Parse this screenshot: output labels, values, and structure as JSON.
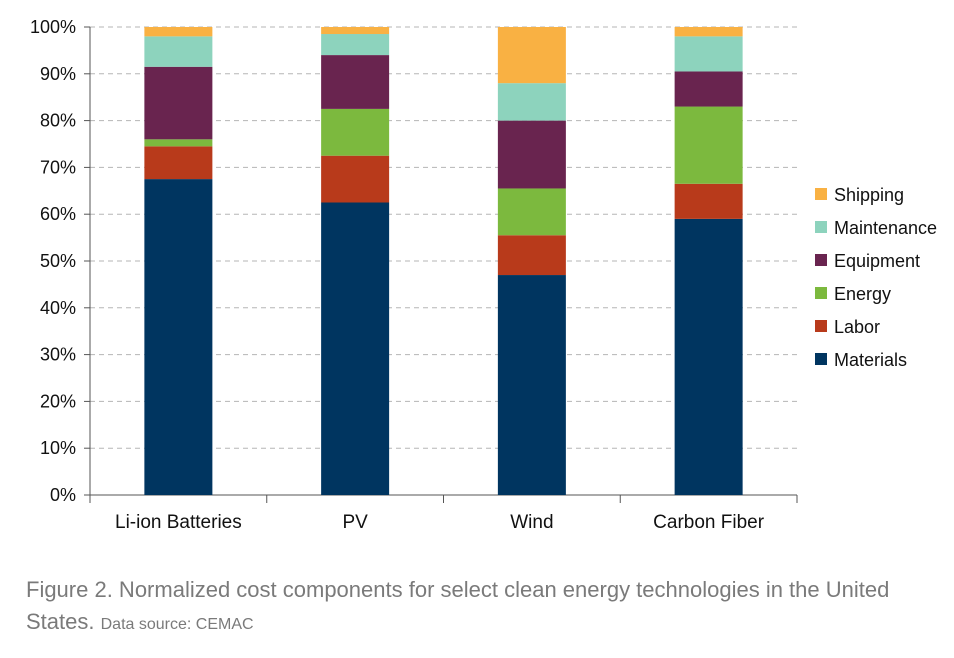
{
  "chart_data": {
    "type": "bar",
    "stacked": true,
    "categories": [
      "Li-ion Batteries",
      "PV",
      "Wind",
      "Carbon Fiber"
    ],
    "series": [
      {
        "name": "Materials",
        "color": "#003560",
        "values": [
          67.5,
          62.5,
          47.0,
          59.0
        ]
      },
      {
        "name": "Labor",
        "color": "#b83a1b",
        "values": [
          7.0,
          10.0,
          8.5,
          7.5
        ]
      },
      {
        "name": "Energy",
        "color": "#7cb93e",
        "values": [
          1.5,
          10.0,
          10.0,
          16.5
        ]
      },
      {
        "name": "Equipment",
        "color": "#69244f",
        "values": [
          15.5,
          11.5,
          14.5,
          7.5
        ]
      },
      {
        "name": "Maintenance",
        "color": "#8dd3bd",
        "values": [
          6.5,
          4.5,
          8.0,
          7.5
        ]
      },
      {
        "name": "Shipping",
        "color": "#f9b143",
        "values": [
          2.0,
          1.5,
          12.0,
          2.0
        ]
      }
    ],
    "ylim": [
      0,
      100
    ],
    "ytick_labels": [
      "0%",
      "10%",
      "20%",
      "30%",
      "40%",
      "50%",
      "60%",
      "70%",
      "80%",
      "90%",
      "100%"
    ],
    "grid": "horizontal dashed",
    "legend_position": "right",
    "xlabel": "",
    "ylabel": ""
  },
  "caption": {
    "main": "Figure 2. Normalized cost components for select clean energy technologies in the United States.",
    "source": "Data source: CEMAC"
  }
}
